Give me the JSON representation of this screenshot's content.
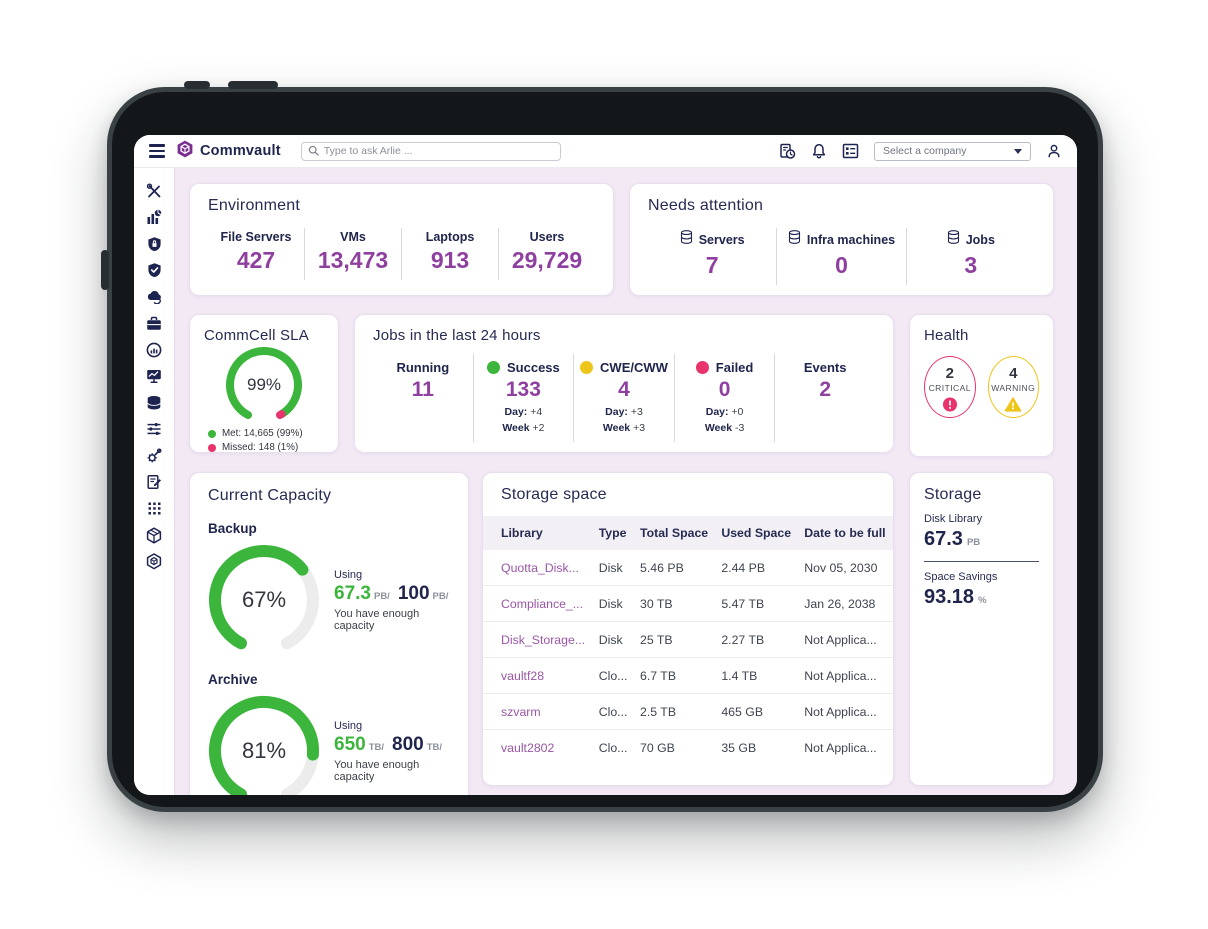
{
  "topbar": {
    "brand": "Commvault",
    "search_placeholder": "Type to ask Arlie ...",
    "company_select": "Select a company",
    "icons": [
      "jobs-history-icon",
      "notifications-bell-icon",
      "summary-list-icon",
      "user-profile-icon"
    ]
  },
  "sidebar": {
    "icons": [
      "tools-icon",
      "reports-chart-icon",
      "security-shield-lock-icon",
      "protection-shield-check-icon",
      "cloud-restore-icon",
      "workload-briefcase-icon",
      "monitoring-gauge-icon",
      "activity-monitor-icon",
      "storage-database-icon",
      "settings-sliders-icon",
      "system-gear-icon",
      "report-edit-icon",
      "apps-grid-icon",
      "package-cube-icon",
      "commvault-cube-icon"
    ]
  },
  "colors": {
    "accent_purple": "#8f3f9f",
    "navy": "#20254c",
    "green": "#3cb53c",
    "pink": "#e8336d",
    "yellow": "#eec51b",
    "background_lavender": "#f2e9f5"
  },
  "cards": {
    "environment": {
      "title": "Environment",
      "stats": [
        {
          "label": "File Servers",
          "value": "427"
        },
        {
          "label": "VMs",
          "value": "13,473"
        },
        {
          "label": "Laptops",
          "value": "913"
        },
        {
          "label": "Users",
          "value": "29,729"
        }
      ]
    },
    "needs_attention": {
      "title": "Needs attention",
      "stats": [
        {
          "label": "Servers",
          "value": "7"
        },
        {
          "label": "Infra machines",
          "value": "0"
        },
        {
          "label": "Jobs",
          "value": "3"
        }
      ]
    },
    "commcell_sla": {
      "title": "CommCell SLA",
      "percent": 99,
      "center_label": "99%",
      "segments": [
        {
          "percent": 99,
          "color": "#3cb53c"
        },
        {
          "percent": 1,
          "color": "#e8336d"
        }
      ],
      "legend": [
        {
          "label": "Met: 14,665 (99%)",
          "color": "#3cb53c"
        },
        {
          "label": "Missed: 148 (1%)",
          "color": "#e8336d"
        }
      ]
    },
    "jobs_24h": {
      "title": "Jobs in the last 24 hours",
      "day_label": "Day:",
      "week_label": "Week",
      "columns": [
        {
          "label": "Running",
          "value": "11"
        },
        {
          "label": "Success",
          "dot": "#3cb53c",
          "value": "133",
          "day": "+4",
          "week": "+2"
        },
        {
          "label": "CWE/CWW",
          "dot": "#eec51b",
          "value": "4",
          "day": "+3",
          "week": "+3"
        },
        {
          "label": "Failed",
          "dot": "#e8336d",
          "value": "0",
          "day": "+0",
          "week": "-3"
        },
        {
          "label": "Events",
          "value": "2"
        }
      ]
    },
    "health": {
      "title": "Health",
      "items": [
        {
          "value": "2",
          "label": "CRITICAL",
          "color": "#e8336d",
          "is_critical": true
        },
        {
          "value": "4",
          "label": "WARNING",
          "color": "#eec51b",
          "is_warning": true
        }
      ]
    },
    "current_capacity": {
      "title": "Current Capacity",
      "gauges": [
        {
          "name": "Backup",
          "percent": 67,
          "center_label": "67%",
          "using_label": "Using",
          "used": "67.3",
          "used_unit": "PB/",
          "total": "100",
          "total_unit": "PB/",
          "note": "You have enough capacity"
        },
        {
          "name": "Archive",
          "percent": 81,
          "center_label": "81%",
          "using_label": "Using",
          "used": "650",
          "used_unit": "TB/",
          "total": "800",
          "total_unit": "TB/",
          "note": "You have enough capacity"
        }
      ]
    },
    "storage_space": {
      "title": "Storage space",
      "columns": [
        "Library",
        "Type",
        "Total Space",
        "Used Space",
        "Date to be full"
      ],
      "rows": [
        [
          "Quotta_Disk...",
          "Disk",
          "5.46 PB",
          "2.44 PB",
          "Nov 05, 2030"
        ],
        [
          "Compliance_...",
          "Disk",
          "30 TB",
          "5.47 TB",
          "Jan 26, 2038"
        ],
        [
          "Disk_Storage...",
          "Disk",
          "25 TB",
          "2.27 TB",
          "Not Applica..."
        ],
        [
          "vaultf28",
          "Clo...",
          "6.7 TB",
          "1.4 TB",
          "Not Applica..."
        ],
        [
          "szvarm",
          "Clo...",
          "2.5 TB",
          "465 GB",
          "Not Applica..."
        ],
        [
          "vault2802",
          "Clo...",
          "70 GB",
          "35 GB",
          "Not Applica..."
        ]
      ]
    },
    "storage": {
      "title": "Storage",
      "metrics": [
        {
          "label": "Disk Library",
          "value": "67.3",
          "unit": "PB"
        },
        {
          "label": "Space Savings",
          "value": "93.18",
          "unit": "%"
        }
      ]
    }
  }
}
